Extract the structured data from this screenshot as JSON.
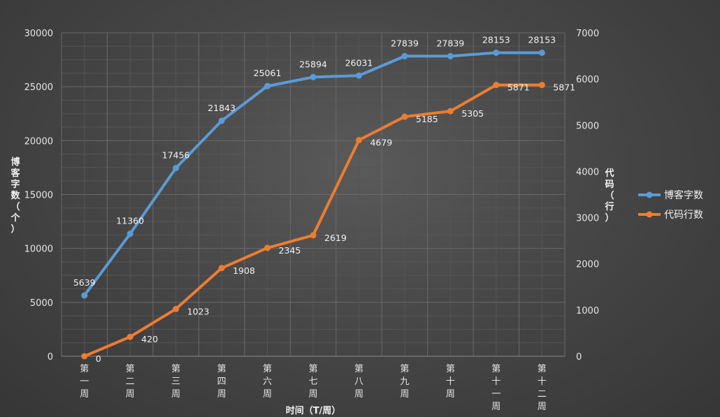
{
  "chart_data": {
    "type": "line",
    "categories": [
      "第一周",
      "第二周",
      "第三周",
      "第四周",
      "第六周",
      "第七周",
      "第八周",
      "第九周",
      "第十周",
      "第十一周",
      "第十二周"
    ],
    "xlabel": "时间（T/周）",
    "ylabel": "博客字数（个）",
    "y2label": "代码（行）",
    "ylim": [
      0,
      30000
    ],
    "y2lim": [
      0,
      7000
    ],
    "yticks": [
      0,
      5000,
      10000,
      15000,
      20000,
      25000,
      30000
    ],
    "y2ticks": [
      0,
      1000,
      2000,
      3000,
      4000,
      5000,
      6000,
      7000
    ],
    "grid": true,
    "legend_position": "right",
    "series": [
      {
        "name": "博客字数",
        "axis": "left",
        "color": "#5b9bd5",
        "values": [
          5639,
          11360,
          17456,
          21843,
          25061,
          25894,
          26031,
          27839,
          27839,
          28153,
          28153
        ]
      },
      {
        "name": "代码行数",
        "axis": "right",
        "color": "#ed7d31",
        "values": [
          0,
          420,
          1023,
          1908,
          2345,
          2619,
          4679,
          5185,
          5305,
          5871,
          5871
        ]
      }
    ]
  }
}
